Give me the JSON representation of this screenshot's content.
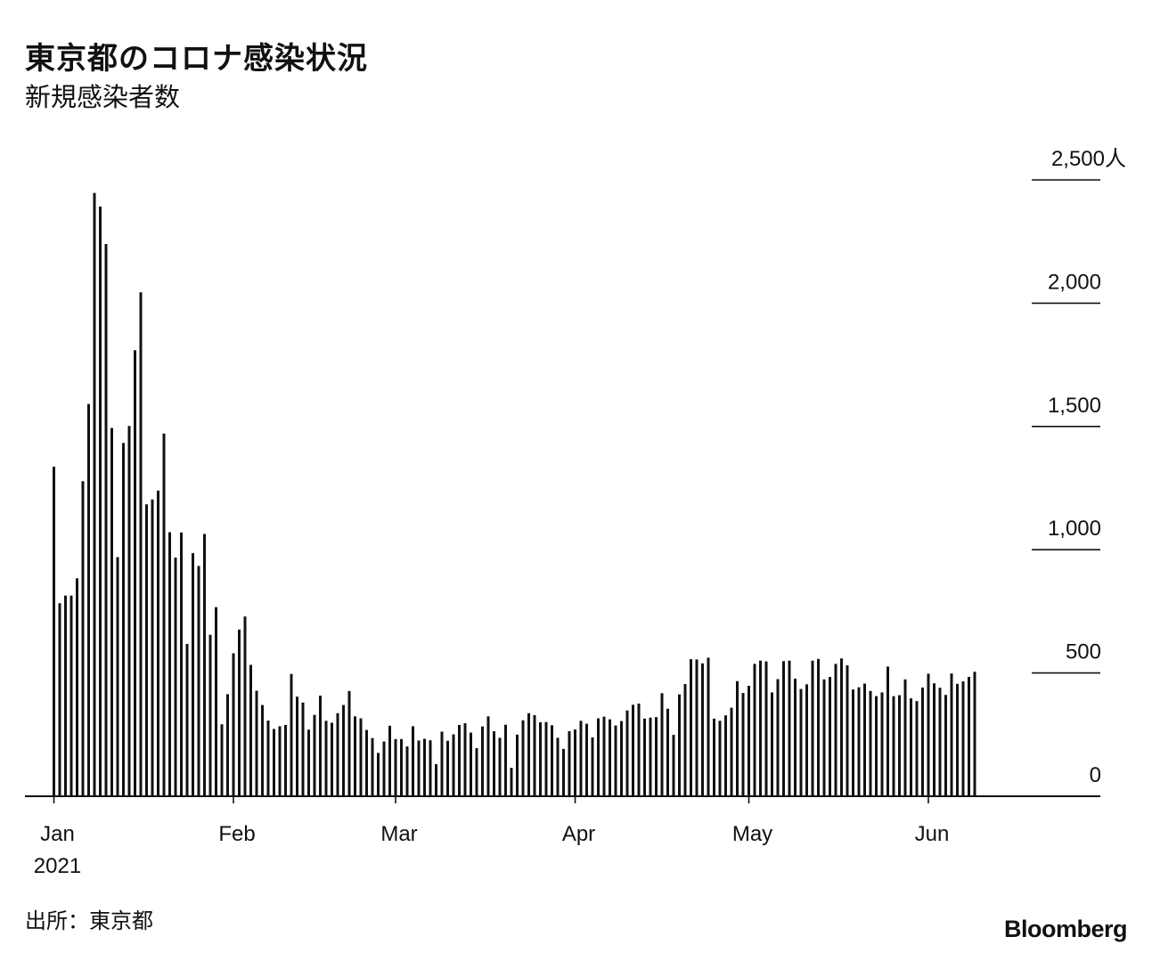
{
  "title": "東京都のコロナ感染状況",
  "subtitle": "新規感染者数",
  "source": "出所：東京都",
  "brand": "Bloomberg",
  "chart_data": {
    "type": "bar",
    "ylim": [
      0,
      2500
    ],
    "y_ticks": [
      {
        "value": 0,
        "label": "0"
      },
      {
        "value": 500,
        "label": "500"
      },
      {
        "value": 1000,
        "label": "1,000"
      },
      {
        "value": 1500,
        "label": "1,500"
      },
      {
        "value": 2000,
        "label": "2,000"
      },
      {
        "value": 2500,
        "label": "2,500人"
      }
    ],
    "x_ticks": [
      {
        "day": 0,
        "label": "Jan",
        "sublabel": "2021"
      },
      {
        "day": 31,
        "label": "Feb"
      },
      {
        "day": 59,
        "label": "Mar"
      },
      {
        "day": 90,
        "label": "Apr"
      },
      {
        "day": 120,
        "label": "May"
      },
      {
        "day": 151,
        "label": "Jun"
      }
    ],
    "dates": {
      "start": "2021-01-01",
      "end": "2021-06-08"
    },
    "values": [
      1337,
      783,
      814,
      814,
      884,
      1278,
      1591,
      2447,
      2392,
      2240,
      1494,
      970,
      1433,
      1502,
      1809,
      2044,
      1184,
      1204,
      1240,
      1471,
      1071,
      968,
      1070,
      618,
      986,
      934,
      1064,
      655,
      767,
      292,
      414,
      580,
      676,
      729,
      533,
      428,
      370,
      307,
      273,
      284,
      289,
      496,
      404,
      380,
      270,
      330,
      408,
      306,
      298,
      337,
      370,
      427,
      324,
      316,
      269,
      236,
      176,
      222,
      286,
      232,
      232,
      202,
      284,
      226,
      233,
      227,
      130,
      262,
      225,
      251,
      289,
      296,
      258,
      195,
      283,
      324,
      264,
      237,
      290,
      115,
      250,
      308,
      337,
      329,
      300,
      301,
      288,
      237,
      192,
      264,
      271,
      306,
      294,
      239,
      316,
      323,
      312,
      287,
      305,
      348,
      371,
      376,
      315,
      319,
      321,
      418,
      355,
      249,
      413,
      455,
      556,
      555,
      539,
      562,
      315,
      306,
      328,
      359,
      467,
      419,
      448,
      537,
      550,
      547,
      421,
      475,
      548,
      550,
      477,
      435,
      454,
      550,
      557,
      474,
      484,
      537,
      559,
      531,
      433,
      442,
      457,
      427,
      406,
      421,
      526,
      406,
      410,
      474,
      397,
      386,
      441,
      497,
      458,
      440,
      411,
      498,
      456,
      466,
      484,
      505
    ]
  }
}
